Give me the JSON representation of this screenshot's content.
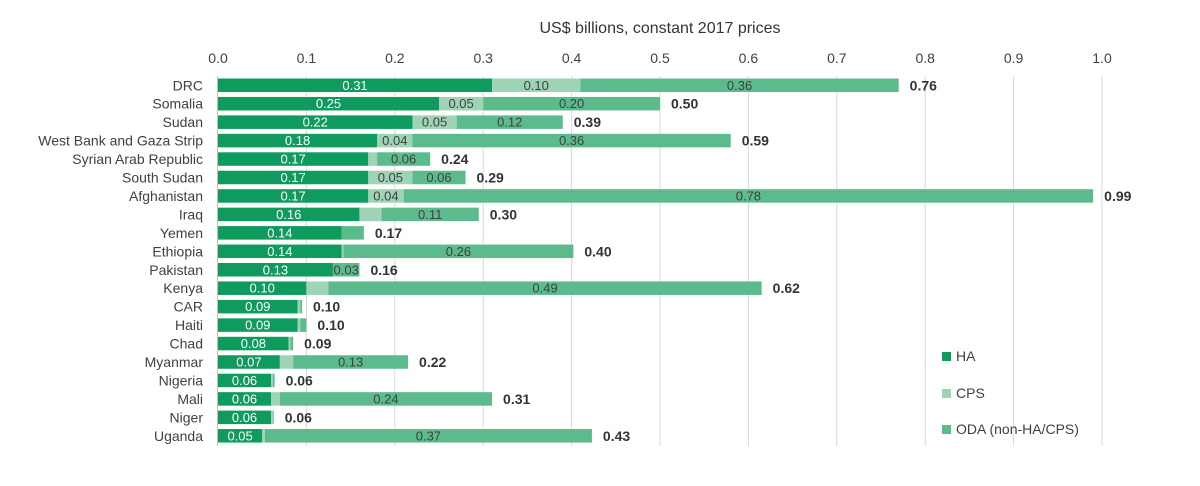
{
  "chart_data": {
    "type": "bar",
    "orientation": "horizontal",
    "stacked": true,
    "title": "",
    "xlabel": "US$ billions, constant 2017 prices",
    "ylabel": "",
    "xlim": [
      0,
      1.0
    ],
    "x_ticks": [
      "0.0",
      "0.1",
      "0.2",
      "0.3",
      "0.4",
      "0.5",
      "0.6",
      "0.7",
      "0.8",
      "0.9",
      "1.0"
    ],
    "grid": "vertical",
    "legend_position": "bottom-right",
    "categories": [
      "DRC",
      "Somalia",
      "Sudan",
      "West Bank and Gaza Strip",
      "Syrian Arab Republic",
      "South Sudan",
      "Afghanistan",
      "Iraq",
      "Yemen",
      "Ethiopia",
      "Pakistan",
      "Kenya",
      "CAR",
      "Haiti",
      "Chad",
      "Myanmar",
      "Nigeria",
      "Mali",
      "Niger",
      "Uganda"
    ],
    "series": [
      {
        "name": "HA",
        "color": "#0f9a5e",
        "values": [
          0.31,
          0.25,
          0.22,
          0.18,
          0.17,
          0.17,
          0.17,
          0.16,
          0.14,
          0.14,
          0.13,
          0.1,
          0.09,
          0.09,
          0.08,
          0.07,
          0.06,
          0.06,
          0.06,
          0.05
        ],
        "labels": [
          "0.31",
          "0.25",
          "0.22",
          "0.18",
          "0.17",
          "0.17",
          "0.17",
          "0.16",
          "0.14",
          "0.14",
          "0.13",
          "0.10",
          "0.09",
          "0.09",
          "0.08",
          "0.07",
          "0.06",
          "0.06",
          "0.06",
          "0.05"
        ]
      },
      {
        "name": "CPS",
        "color": "#9ed4b5",
        "values": [
          0.1,
          0.05,
          0.05,
          0.04,
          0.01,
          0.05,
          0.04,
          0.025,
          0.0,
          0.002,
          0.0,
          0.025,
          0.003,
          0.003,
          0.002,
          0.015,
          0.002,
          0.01,
          0.002,
          0.003
        ],
        "labels": [
          "0.10",
          "0.05",
          "0.05",
          "0.04",
          "",
          "0.05",
          "0.04",
          "",
          "",
          "",
          "",
          "",
          "",
          "",
          "",
          "",
          "",
          "",
          "",
          ""
        ]
      },
      {
        "name": "ODA (non-HA/CPS)",
        "color": "#5cbb8c",
        "values": [
          0.36,
          0.2,
          0.12,
          0.36,
          0.06,
          0.06,
          0.78,
          0.11,
          0.025,
          0.26,
          0.03,
          0.49,
          0.002,
          0.007,
          0.003,
          0.13,
          0.002,
          0.24,
          0.001,
          0.37
        ],
        "labels": [
          "0.36",
          "0.20",
          "0.12",
          "0.36",
          "0.06",
          "0.06",
          "0.78",
          "0.11",
          "",
          "0.26",
          "0.03",
          "0.49",
          "",
          "",
          "",
          "0.13",
          "",
          "0.24",
          "",
          "0.37"
        ]
      }
    ],
    "totals": [
      "0.76",
      "0.50",
      "0.39",
      "0.59",
      "0.24",
      "0.29",
      "0.99",
      "0.30",
      "0.17",
      "0.40",
      "0.16",
      "0.62",
      "0.10",
      "0.10",
      "0.09",
      "0.22",
      "0.06",
      "0.31",
      "0.06",
      "0.43"
    ]
  }
}
